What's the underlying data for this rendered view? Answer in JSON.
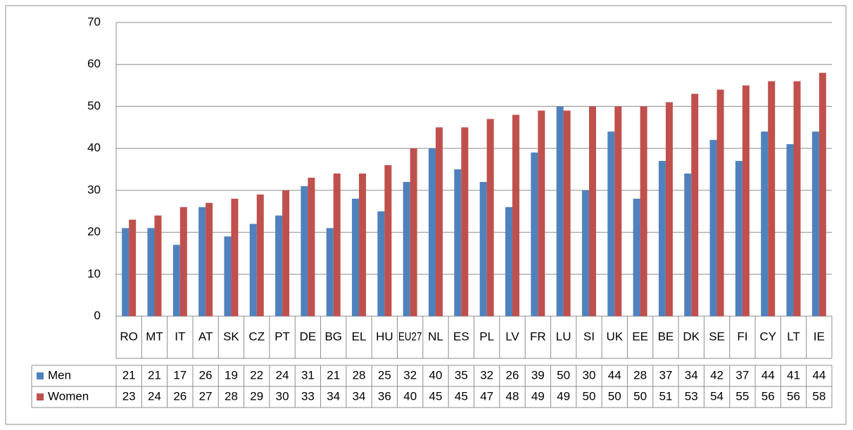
{
  "chart_data": {
    "type": "bar",
    "categories": [
      "RO",
      "MT",
      "IT",
      "AT",
      "SK",
      "CZ",
      "PT",
      "DE",
      "BG",
      "EL",
      "HU",
      "EU27",
      "NL",
      "ES",
      "PL",
      "LV",
      "FR",
      "LU",
      "SI",
      "UK",
      "EE",
      "BE",
      "DK",
      "SE",
      "FI",
      "CY",
      "LT",
      "IE"
    ],
    "series": [
      {
        "name": "Men",
        "color": "#4f81bd",
        "values": [
          21,
          21,
          17,
          26,
          19,
          22,
          24,
          31,
          21,
          28,
          25,
          32,
          40,
          35,
          32,
          26,
          39,
          50,
          30,
          44,
          28,
          37,
          34,
          42,
          37,
          44,
          41,
          44
        ]
      },
      {
        "name": "Women",
        "color": "#c0504d",
        "values": [
          23,
          24,
          26,
          27,
          28,
          29,
          30,
          33,
          34,
          34,
          36,
          40,
          45,
          45,
          47,
          48,
          49,
          49,
          50,
          50,
          50,
          51,
          53,
          54,
          55,
          56,
          56,
          58
        ]
      }
    ],
    "ylim": [
      0,
      70
    ],
    "yticks": [
      0,
      10,
      20,
      30,
      40,
      50,
      60,
      70
    ],
    "grid": true
  }
}
